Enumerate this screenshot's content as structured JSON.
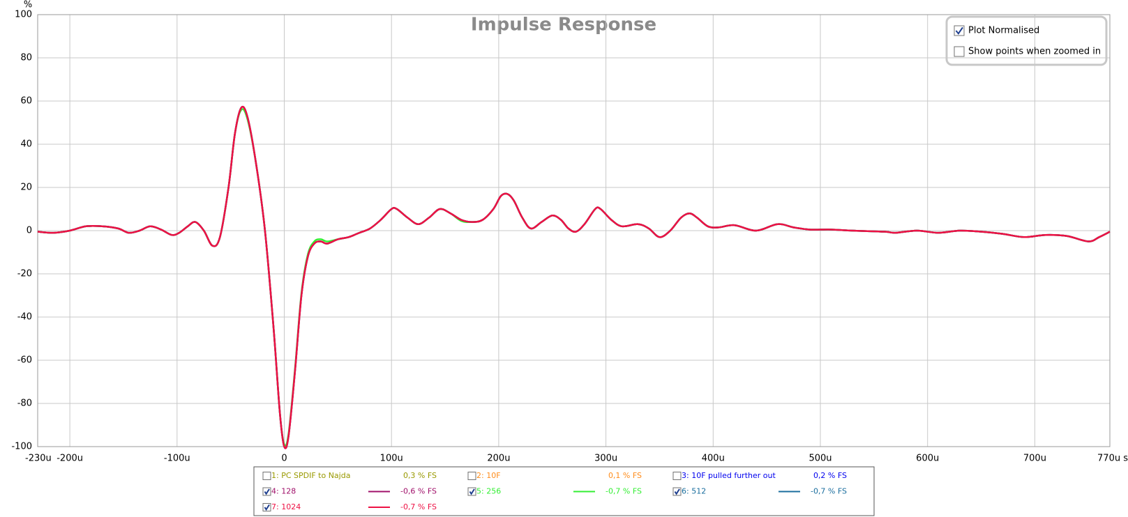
{
  "chart_data": {
    "type": "line",
    "title": "Impulse Response",
    "y_label": "%",
    "xlim": [
      -230,
      770
    ],
    "ylim": [
      -100,
      100
    ],
    "xticks": [
      {
        "value": -230,
        "label": "-230u"
      },
      {
        "value": -200,
        "label": "-200u"
      },
      {
        "value": -100,
        "label": "-100u"
      },
      0,
      {
        "value": 100,
        "label": "100u"
      },
      {
        "value": 200,
        "label": "200u"
      },
      {
        "value": 300,
        "label": "300u"
      },
      {
        "value": 400,
        "label": "400u"
      },
      {
        "value": 500,
        "label": "500u"
      },
      {
        "value": 600,
        "label": "600u"
      },
      {
        "value": 700,
        "label": "700u"
      },
      {
        "value": 770,
        "label": "770u s"
      }
    ],
    "yticks": [
      100,
      80,
      60,
      40,
      20,
      0,
      -20,
      -40,
      -60,
      -80,
      -100
    ],
    "grid": true,
    "x": [
      -230,
      -215,
      -200,
      -185,
      -170,
      -155,
      -145,
      -135,
      -125,
      -115,
      -105,
      -98,
      -90,
      -83,
      -75,
      -67,
      -60,
      -52,
      -46,
      -40,
      -34,
      -26,
      -18,
      -10,
      -4,
      0,
      4,
      10,
      16,
      22,
      28,
      34,
      40,
      50,
      60,
      70,
      80,
      90,
      100,
      105,
      115,
      125,
      135,
      145,
      155,
      165,
      175,
      185,
      195,
      202,
      208,
      214,
      222,
      230,
      240,
      250,
      258,
      265,
      272,
      280,
      290,
      295,
      305,
      315,
      330,
      340,
      350,
      360,
      370,
      378,
      385,
      395,
      405,
      420,
      440,
      460,
      475,
      490,
      510,
      530,
      560,
      570,
      590,
      610,
      630,
      650,
      670,
      690,
      710,
      730,
      750,
      760,
      770
    ],
    "series": [
      {
        "name": "1: PC SPDIF to Najda",
        "color": "#999900",
        "checked": false,
        "level": "0,3 % FS"
      },
      {
        "name": "2: 10F",
        "color": "#ff8c1a",
        "checked": false,
        "level": "0,1 % FS"
      },
      {
        "name": "3: 10F pulled further out",
        "color": "#0000ee",
        "checked": false,
        "level": "0,2 % FS"
      },
      {
        "name": "4: 128",
        "color": "#a0106a",
        "checked": true,
        "level": "-0,6 % FS",
        "values": [
          -0.5,
          -1,
          0,
          2,
          2,
          1,
          -1,
          0,
          2,
          0.5,
          -2,
          -1,
          2,
          4,
          0,
          -7,
          -3,
          20,
          45,
          57,
          52,
          30,
          0,
          -45,
          -85,
          -100,
          -95,
          -65,
          -30,
          -12,
          -6,
          -5,
          -6,
          -4,
          -3,
          -1,
          1,
          5,
          10,
          10,
          6,
          3,
          6,
          10,
          8,
          5,
          4,
          5,
          10,
          16,
          17,
          14,
          6,
          1,
          4,
          7,
          5,
          1,
          -0.5,
          3,
          10,
          10,
          5,
          2,
          3,
          1,
          -3,
          0,
          6,
          8,
          6,
          2,
          1.5,
          2.5,
          0,
          3,
          1.5,
          0.5,
          0.5,
          0,
          -0.5,
          -1,
          0,
          -1,
          0,
          -0.5,
          -1.5,
          -3,
          -2,
          -2.5,
          -5,
          -3,
          -0.5
        ]
      },
      {
        "name": "5: 256",
        "color": "#33ee33",
        "checked": true,
        "level": "-0,7 % FS",
        "values": [
          -0.5,
          -1,
          0,
          2,
          2,
          1,
          -1,
          0,
          2,
          0.5,
          -2,
          -1,
          2,
          4,
          0,
          -7,
          -3,
          20,
          45,
          56,
          51,
          30,
          0,
          -45,
          -85,
          -99,
          -94,
          -64,
          -29,
          -11,
          -5,
          -4,
          -5,
          -4,
          -3,
          -1,
          1,
          5,
          10,
          10,
          6,
          3,
          6,
          10,
          8,
          4.5,
          4,
          5,
          10,
          16,
          17,
          14,
          6,
          1,
          4,
          7,
          5,
          1,
          -0.5,
          3,
          10,
          10,
          5,
          2,
          3,
          1,
          -3,
          0,
          6,
          8,
          6,
          2,
          1.5,
          2.5,
          0,
          3,
          1.5,
          0.5,
          0.5,
          0,
          -0.5,
          -1,
          0,
          -1,
          0,
          -0.5,
          -1.5,
          -3,
          -2,
          -2.5,
          -5,
          -3,
          -0.5
        ]
      },
      {
        "name": "6: 512",
        "color": "#1a6e9e",
        "checked": true,
        "level": "-0,7 % FS",
        "values": [
          -0.5,
          -1,
          0,
          2,
          2,
          1,
          -1,
          0,
          2,
          0.5,
          -2,
          -1,
          2,
          4,
          0,
          -7,
          -3,
          20,
          45,
          57,
          52,
          30,
          0,
          -45,
          -85,
          -100,
          -95,
          -65,
          -30,
          -12,
          -6,
          -5,
          -6,
          -4,
          -3,
          -1,
          1,
          5,
          10,
          10,
          6,
          3,
          6,
          10,
          8,
          5,
          4,
          5,
          10,
          16,
          17,
          14,
          6,
          1,
          4,
          7,
          5,
          1,
          -0.5,
          3,
          10,
          10,
          5,
          2,
          3,
          1,
          -3,
          0,
          6,
          8,
          6,
          2,
          1.5,
          2.5,
          0,
          3,
          1.5,
          0.5,
          0.5,
          0,
          -0.5,
          -1,
          0,
          -1,
          0,
          -0.5,
          -1.5,
          -3,
          -2,
          -2.5,
          -5,
          -3,
          -0.5
        ]
      },
      {
        "name": "7: 1024",
        "color": "#ee1144",
        "checked": true,
        "level": "-0,7 % FS",
        "values": [
          -0.5,
          -1,
          0,
          2,
          2,
          1,
          -1,
          0,
          2,
          0.5,
          -2,
          -1,
          2,
          4,
          0,
          -7,
          -3,
          20,
          45,
          57,
          52,
          30,
          0,
          -45,
          -85,
          -100,
          -95,
          -65,
          -30,
          -12,
          -6,
          -5,
          -6,
          -4,
          -3,
          -1,
          1,
          5,
          10,
          10,
          6,
          3,
          6,
          10,
          8,
          5,
          4,
          5,
          10,
          16,
          17,
          14,
          6,
          1,
          4,
          7,
          5,
          1,
          -0.5,
          3,
          10,
          10,
          5,
          2,
          3,
          1,
          -3,
          0,
          6,
          8,
          6,
          2,
          1.5,
          2.5,
          0,
          3,
          1.5,
          0.5,
          0.5,
          0,
          -0.5,
          -1,
          0,
          -1,
          0,
          -0.5,
          -1.5,
          -3,
          -2,
          -2.5,
          -5,
          -3,
          -0.5
        ]
      }
    ]
  },
  "controls": [
    {
      "label": "Plot Normalised",
      "checked": true
    },
    {
      "label": "Show points when zoomed in",
      "checked": false
    }
  ]
}
